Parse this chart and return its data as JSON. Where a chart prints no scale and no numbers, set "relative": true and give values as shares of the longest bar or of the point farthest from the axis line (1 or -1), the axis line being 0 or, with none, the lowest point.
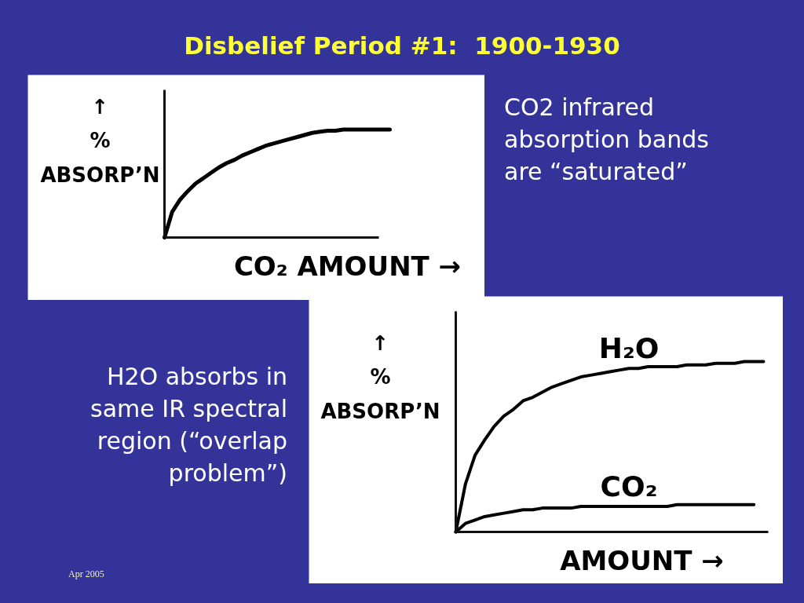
{
  "chart_data": [
    {
      "type": "line",
      "title": "Disbelief Period #1:  1900-1930",
      "xlabel": "CO₂ AMOUNT →",
      "ylabel": "↑\n%\nABSORP’N",
      "annotations": [
        "CO2 infrared\nabsorption bands\nare “saturated”"
      ],
      "relative": true,
      "categories": [
        null,
        null,
        null,
        null,
        null,
        null,
        null,
        null,
        null,
        null,
        null,
        null,
        null,
        null,
        null,
        null,
        null,
        null,
        null,
        null,
        null,
        null,
        null,
        null,
        null,
        null,
        null,
        null,
        null,
        null
      ],
      "values": [
        0,
        0.24,
        0.35,
        0.43,
        0.5,
        0.55,
        0.6,
        0.65,
        0.69,
        0.72,
        0.76,
        0.79,
        0.82,
        0.85,
        0.87,
        0.89,
        0.91,
        0.93,
        0.95,
        0.97,
        0.98,
        0.99,
        0.99,
        1,
        1,
        1,
        1,
        1,
        1,
        1
      ],
      "color": "#000000"
    },
    {
      "type": "line",
      "xlabel": "AMOUNT →",
      "ylabel": "↑\n%\nABSORP’N",
      "annotations": [
        "H2O absorbs in\nsame IR spectral\nregion (“overlap\nproblem”)",
        "Apr 2005"
      ],
      "relative": true,
      "categories": [
        null,
        null,
        null,
        null,
        null,
        null,
        null,
        null,
        null,
        null,
        null,
        null,
        null,
        null,
        null,
        null,
        null,
        null,
        null,
        null,
        null,
        null,
        null,
        null,
        null,
        null,
        null,
        null,
        null,
        null,
        null,
        null,
        null
      ],
      "series": [
        {
          "name": "H₂O",
          "color": "#000000",
          "values": [
            0,
            0.28,
            0.45,
            0.54,
            0.62,
            0.68,
            0.72,
            0.77,
            0.79,
            0.82,
            0.85,
            0.87,
            0.89,
            0.91,
            0.92,
            0.93,
            0.94,
            0.95,
            0.96,
            0.96,
            0.97,
            0.97,
            0.97,
            0.97,
            0.98,
            0.98,
            0.98,
            0.99,
            0.99,
            0.99,
            1,
            1,
            1
          ]
        },
        {
          "name": "CO₂",
          "color": "#000000",
          "values": [
            0,
            0.05,
            0.07,
            0.09,
            0.1,
            0.11,
            0.12,
            0.13,
            0.13,
            0.14,
            0.14,
            0.14,
            0.14,
            0.15,
            0.15,
            0.15,
            0.15,
            0.15,
            0.15,
            0.15,
            0.15,
            0.15,
            0.15,
            0.16,
            0.16,
            0.16,
            0.16,
            0.16,
            0.16,
            0.16,
            0.16,
            0.16,
            null
          ]
        }
      ]
    }
  ]
}
